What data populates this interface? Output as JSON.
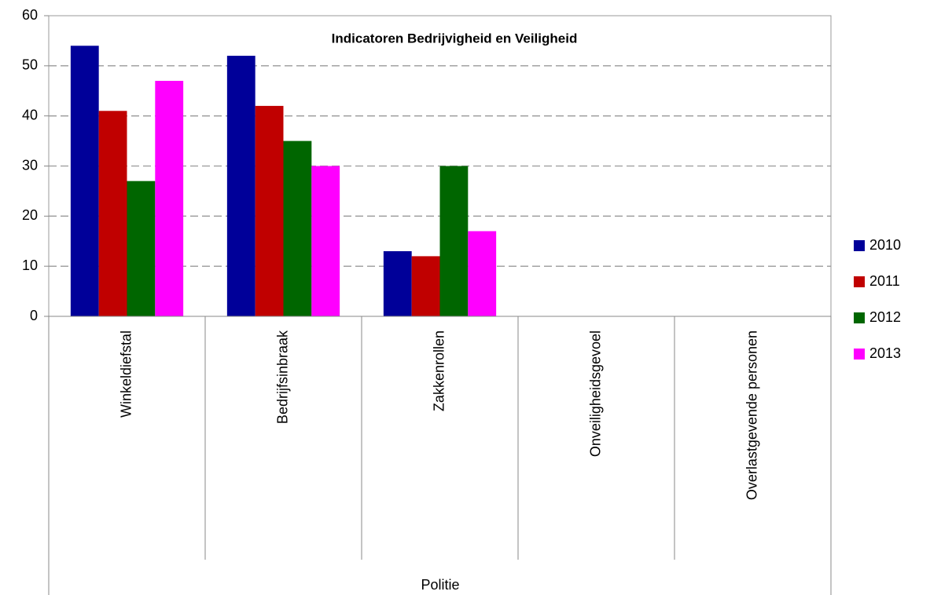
{
  "chart_data": {
    "type": "bar",
    "title": "Indicatoren Bedrijvigheid en Veiligheid",
    "categories": [
      "Winkeldiefstal",
      "Bedrijfsinbraak",
      "Zakkenrollen",
      "Onveiligheidsgevoel",
      "Overlastgevende personen"
    ],
    "category_group": "Politie",
    "series": [
      {
        "name": "2010",
        "color": "#000099",
        "values": [
          54,
          52,
          13,
          null,
          null
        ]
      },
      {
        "name": "2011",
        "color": "#c00000",
        "values": [
          41,
          42,
          12,
          null,
          null
        ]
      },
      {
        "name": "2012",
        "color": "#006600",
        "values": [
          27,
          35,
          30,
          null,
          null
        ]
      },
      {
        "name": "2013",
        "color": "#ff00ff",
        "values": [
          47,
          30,
          17,
          null,
          null
        ]
      }
    ],
    "ylim": [
      0,
      60
    ],
    "yticks": [
      0,
      10,
      20,
      30,
      40,
      50,
      60
    ],
    "grid": true,
    "legend": "right"
  }
}
